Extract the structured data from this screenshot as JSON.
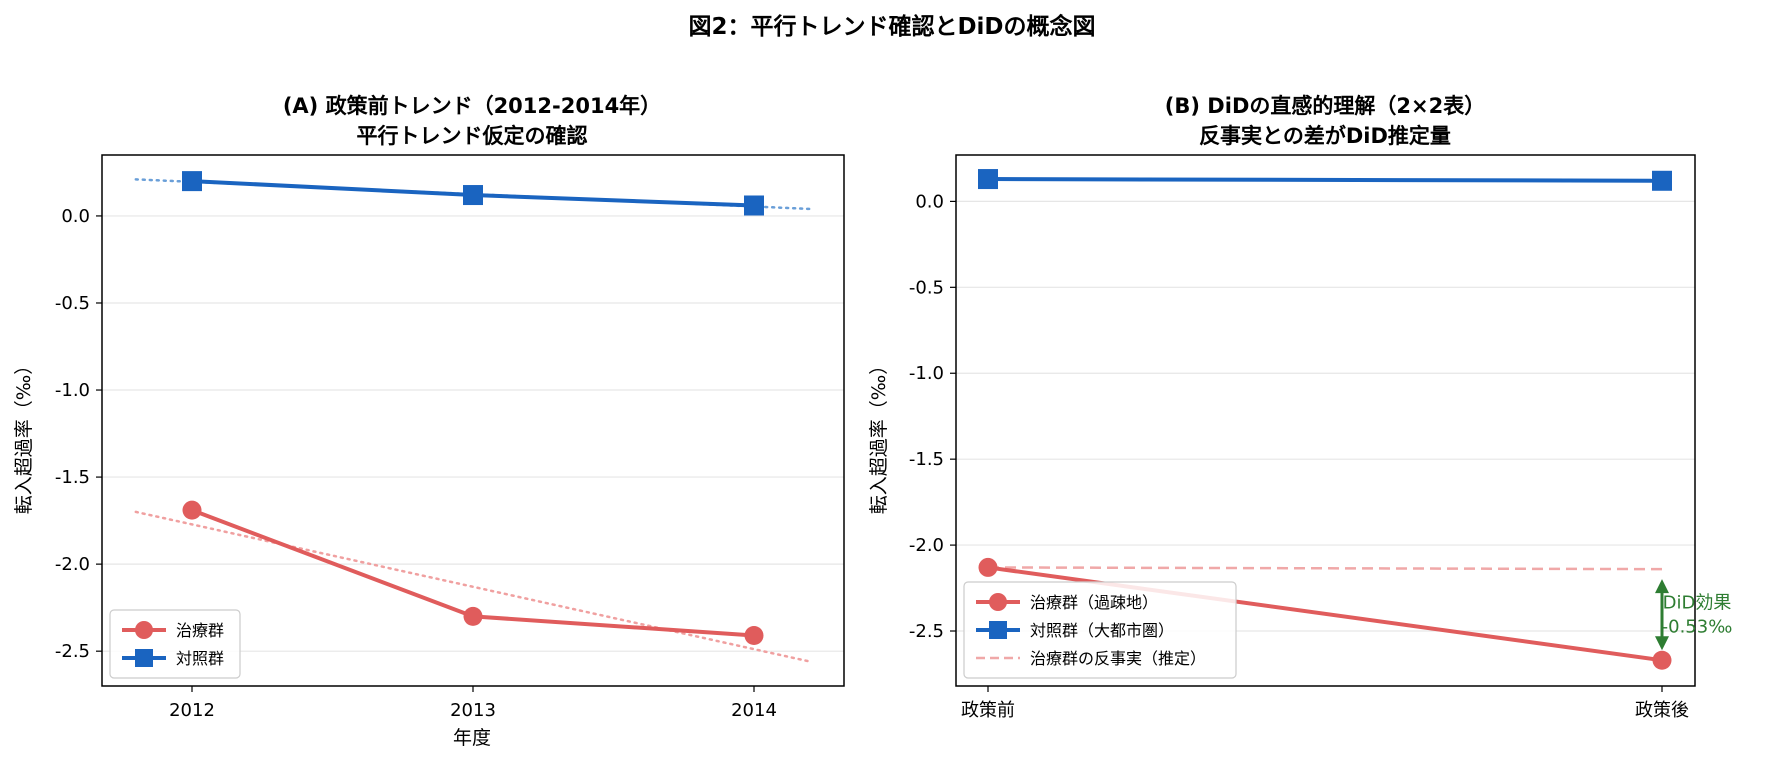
{
  "figure_title": "図2：平行トレンド確認とDiDの概念図",
  "chart_data": [
    {
      "id": "A",
      "type": "line",
      "title_lines": [
        "(A) 政策前トレンド（2012-2014年）",
        "平行トレンド仮定の確認"
      ],
      "xlabel": "年度",
      "ylabel": "転入超過率（‰）",
      "categories": [
        "2012",
        "2013",
        "2014"
      ],
      "ylim": [
        -2.7,
        0.35
      ],
      "yticks": [
        0.0,
        -0.5,
        -1.0,
        -1.5,
        -2.0,
        -2.5
      ],
      "ytick_labels": [
        "0.0",
        "-0.5",
        "-1.0",
        "-1.5",
        "-2.0",
        "-2.5"
      ],
      "grid": true,
      "legend_position": "lower-left",
      "series": [
        {
          "name": "治療群",
          "values": [
            -1.69,
            -2.3,
            -2.41
          ],
          "color": "#e05c5c",
          "marker": "circle",
          "trend": {
            "x": [
              -0.2,
              2.2
            ],
            "y": [
              -1.7,
              -2.56
            ],
            "color": "#f0a0a0"
          }
        },
        {
          "name": "対照群",
          "values": [
            0.2,
            0.12,
            0.06
          ],
          "color": "#1a64c0",
          "marker": "square",
          "trend": {
            "x": [
              -0.2,
              2.2
            ],
            "y": [
              0.21,
              0.04
            ],
            "color": "#6a9fd8"
          }
        }
      ]
    },
    {
      "id": "B",
      "type": "line",
      "title_lines": [
        "(B) DiDの直感的理解（2×2表）",
        "反事実との差がDiD推定量"
      ],
      "xlabel": "",
      "ylabel": "転入超過率（‰）",
      "categories": [
        "政策前",
        "政策後"
      ],
      "ylim": [
        -2.82,
        0.27
      ],
      "yticks": [
        0.0,
        -0.5,
        -1.0,
        -1.5,
        -2.0,
        -2.5
      ],
      "ytick_labels": [
        "0.0",
        "-0.5",
        "-1.0",
        "-1.5",
        "-2.0",
        "-2.5"
      ],
      "grid": true,
      "legend_position": "lower-left",
      "series": [
        {
          "name": "治療群（過疎地）",
          "values": [
            -2.13,
            -2.67
          ],
          "color": "#e05c5c",
          "marker": "circle"
        },
        {
          "name": "対照群（大都市圏）",
          "values": [
            0.13,
            0.12
          ],
          "color": "#1a64c0",
          "marker": "square"
        },
        {
          "name": "治療群の反事実（推定）",
          "values": [
            -2.13,
            -2.14
          ],
          "color": "#f0a8a8",
          "marker": "none",
          "dashed": true
        }
      ],
      "annotation": {
        "lines": [
          "DiD効果",
          "-0.53‰"
        ],
        "from": -2.14,
        "to": -2.67,
        "color": "#2e7d32"
      }
    }
  ]
}
